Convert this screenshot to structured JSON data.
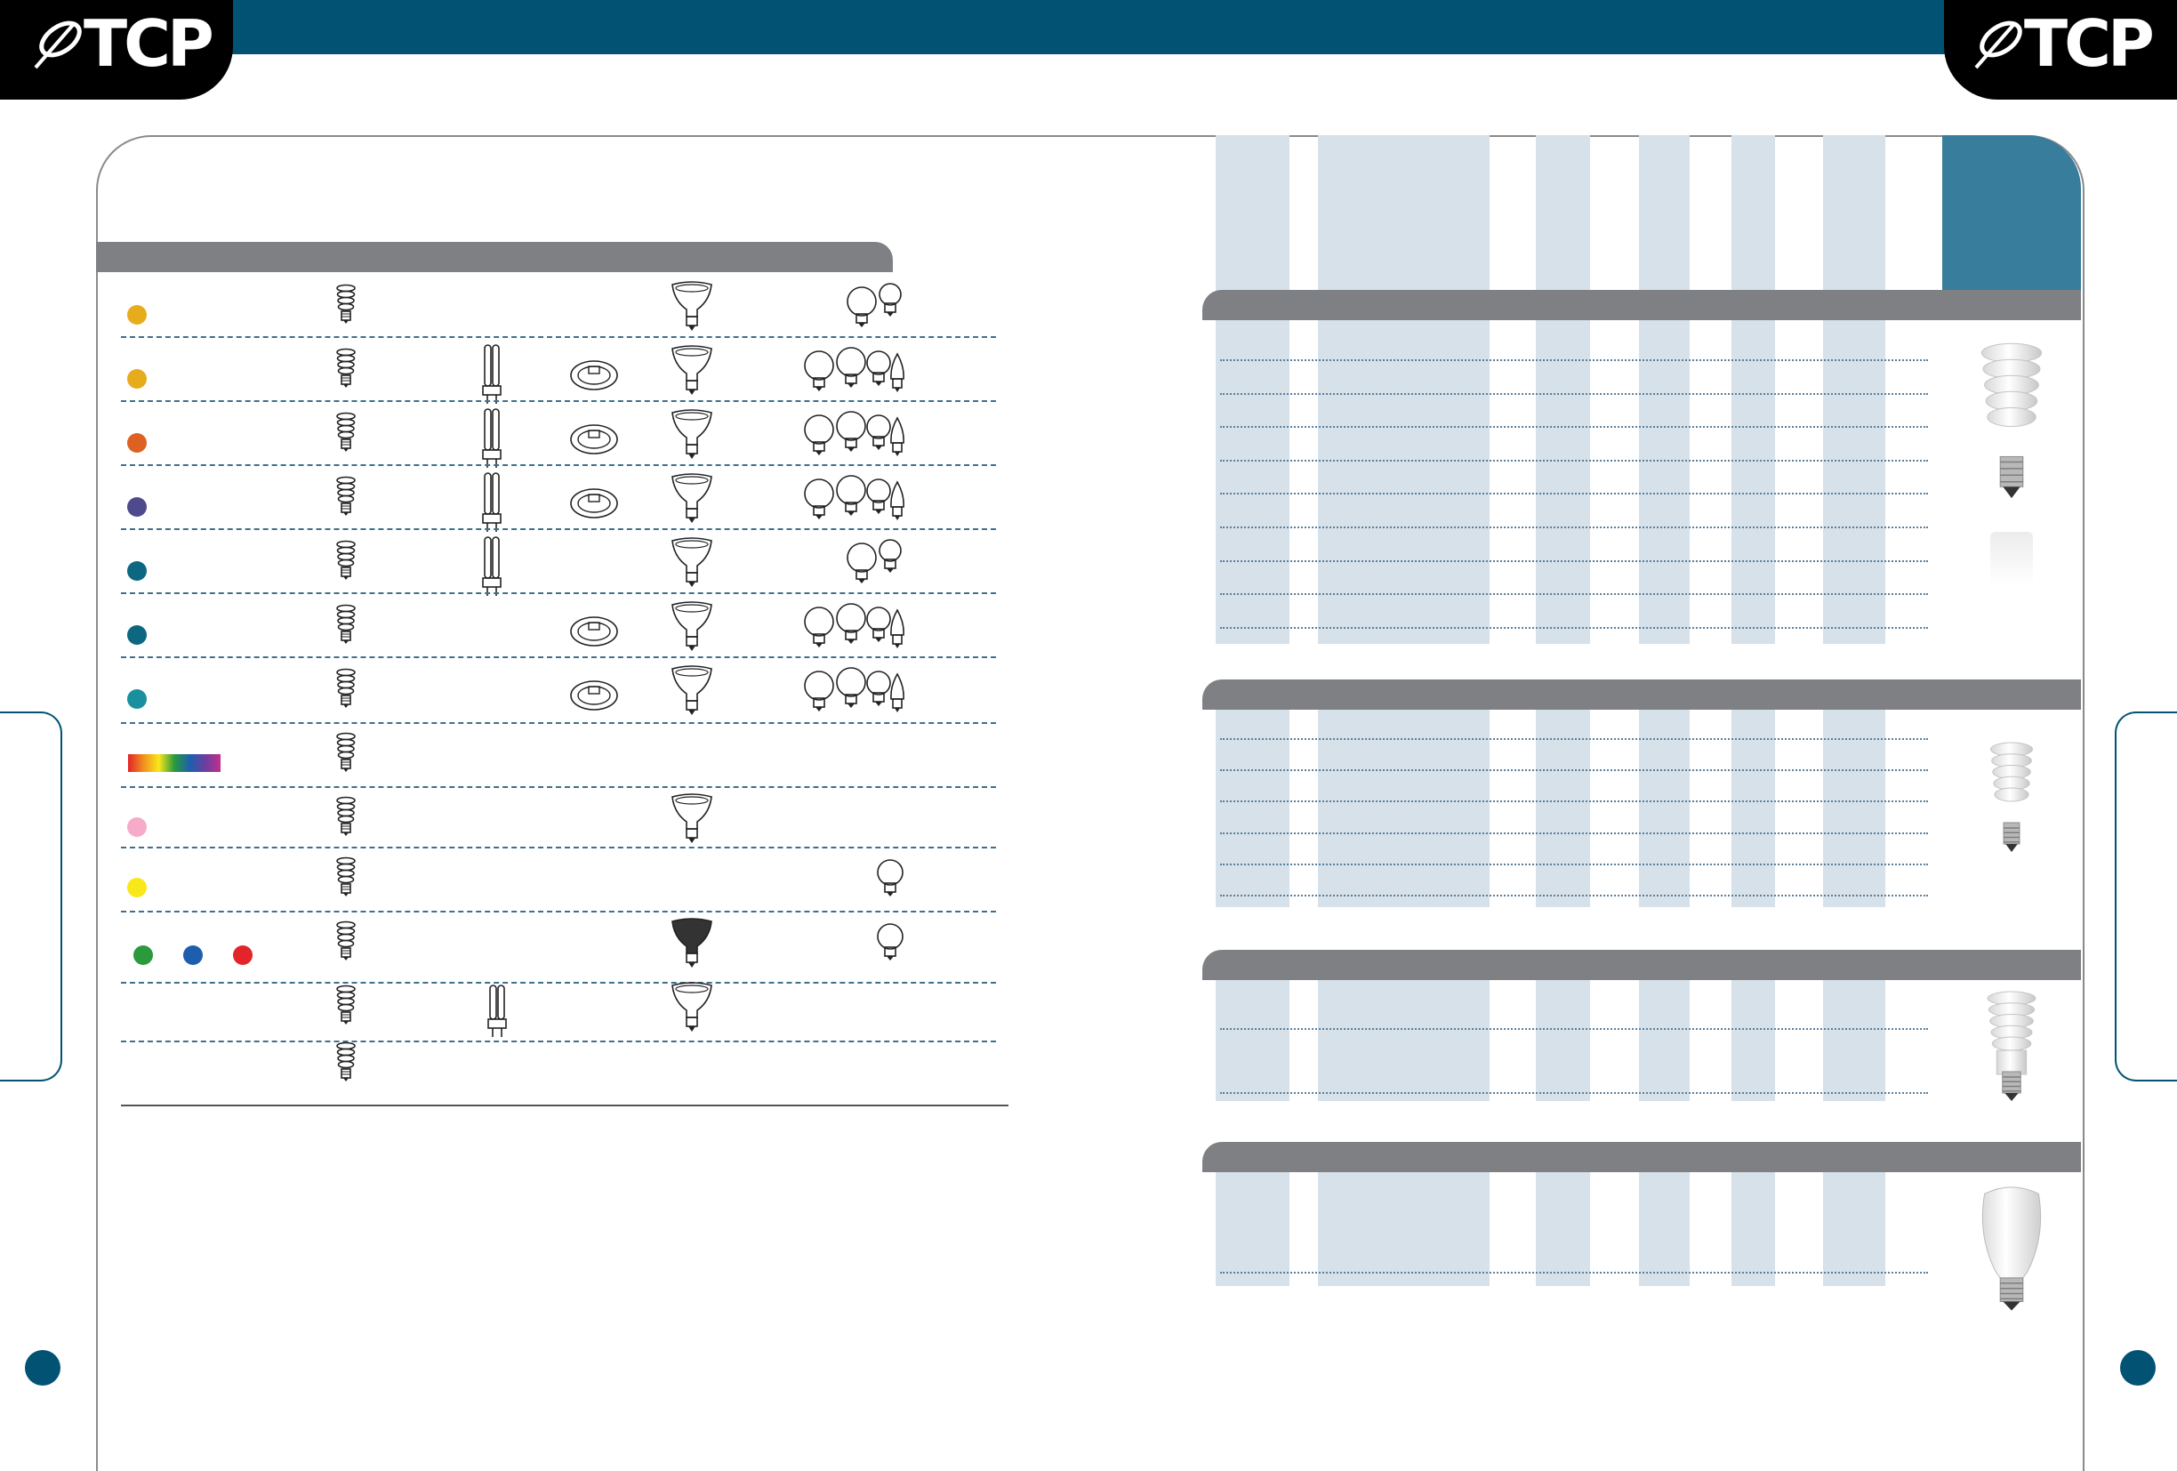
{
  "brand": {
    "logo_text": "TCP",
    "color": "#025274"
  },
  "left_table": {
    "row_colors": [
      "#e6ac1b",
      "#e6ac1b",
      "#dd6122",
      "#4f4a8d",
      "#0d6780",
      "#0d6780",
      "#1a8f9e",
      "spectrum",
      "#f6abc8",
      "#f8e81a",
      "rgb",
      "none",
      "none"
    ],
    "rgb_dots": [
      "#2a9a3c",
      "#1d5fae",
      "#e32428"
    ],
    "rows": [
      {
        "spiral": true,
        "tube": false,
        "circline": false,
        "reflector": true,
        "globes": 2
      },
      {
        "spiral": true,
        "tube": true,
        "circline": true,
        "reflector": true,
        "globes": 4
      },
      {
        "spiral": true,
        "tube": true,
        "circline": true,
        "reflector": true,
        "globes": 4
      },
      {
        "spiral": true,
        "tube": true,
        "circline": true,
        "reflector": true,
        "globes": 4
      },
      {
        "spiral": true,
        "tube": true,
        "circline": false,
        "reflector": true,
        "globes": 2
      },
      {
        "spiral": true,
        "tube": false,
        "circline": true,
        "reflector": true,
        "globes": 4
      },
      {
        "spiral": true,
        "tube": false,
        "circline": true,
        "reflector": true,
        "globes": 4
      },
      {
        "spiral": true,
        "tube": false,
        "circline": false,
        "reflector": false,
        "globes": 0
      },
      {
        "spiral": true,
        "tube": false,
        "circline": false,
        "reflector": true,
        "globes": 0
      },
      {
        "spiral": true,
        "tube": false,
        "circline": false,
        "reflector": false,
        "globes": 1
      },
      {
        "spiral": true,
        "tube": false,
        "circline": false,
        "reflector": "dark",
        "globes": 1
      },
      {
        "spiral": true,
        "tube": "short",
        "circline": false,
        "reflector": true,
        "globes": 0
      },
      {
        "spiral": true,
        "tube": false,
        "circline": false,
        "reflector": false,
        "globes": 0
      }
    ]
  },
  "right_sections": [
    {
      "bulb": "spiral-large",
      "rows": 9
    },
    {
      "bulb": "spiral-small",
      "rows": 6
    },
    {
      "bulb": "spiral-base",
      "rows": 2
    },
    {
      "bulb": "covered-a19",
      "rows": 1
    }
  ],
  "icons": {
    "spiral": "spiral-cfl-icon",
    "tube": "twin-tube-cfl-icon",
    "circline": "circline-icon",
    "reflector": "reflector-bulb-icon",
    "globe": "globe-bulb-icon"
  }
}
